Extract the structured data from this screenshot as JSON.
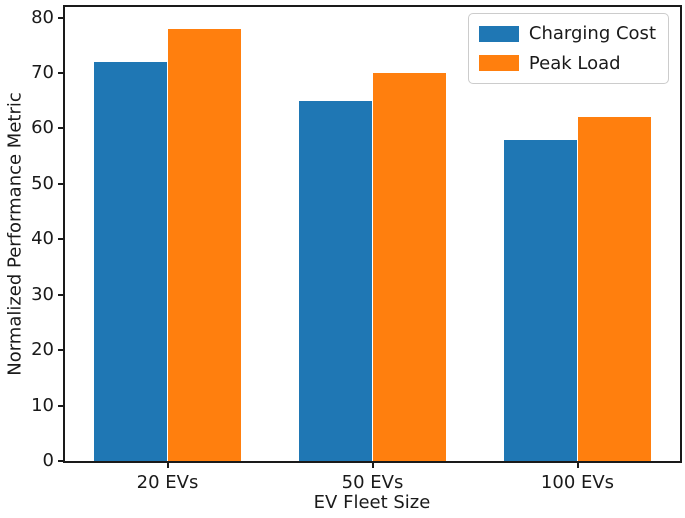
{
  "chart_data": {
    "type": "bar",
    "title": "",
    "xlabel": "EV Fleet Size",
    "ylabel": "Normalized Performance Metric",
    "categories": [
      "20 EVs",
      "50 EVs",
      "100 EVs"
    ],
    "series": [
      {
        "name": "Charging Cost",
        "color": "#1f77b4",
        "values": [
          72,
          65,
          58
        ]
      },
      {
        "name": "Peak Load",
        "color": "#ff7f0e",
        "values": [
          78,
          70,
          62
        ]
      }
    ],
    "ylim": [
      0,
      81.9
    ],
    "yticks": [
      0,
      10,
      20,
      30,
      40,
      50,
      60,
      70,
      80
    ],
    "grid": false,
    "legend_position": "upper right",
    "bar_width_fraction": 0.12,
    "frame_color": "#1a1a1a",
    "text_color": "#1a1a1a",
    "background_color": "#ffffff"
  }
}
